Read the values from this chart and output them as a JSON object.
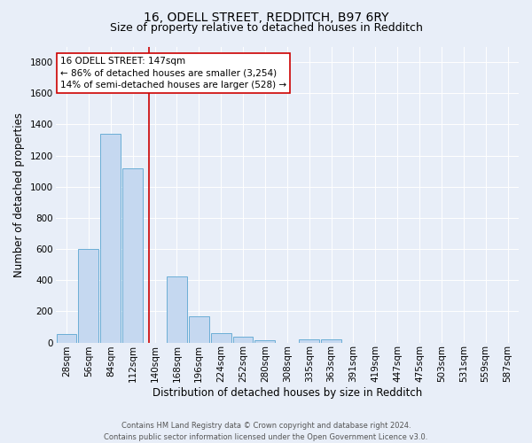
{
  "title_line1": "16, ODELL STREET, REDDITCH, B97 6RY",
  "title_line2": "Size of property relative to detached houses in Redditch",
  "xlabel": "Distribution of detached houses by size in Redditch",
  "ylabel": "Number of detached properties",
  "footer_line1": "Contains HM Land Registry data © Crown copyright and database right 2024.",
  "footer_line2": "Contains public sector information licensed under the Open Government Licence v3.0.",
  "bin_labels": [
    "28sqm",
    "56sqm",
    "84sqm",
    "112sqm",
    "140sqm",
    "168sqm",
    "196sqm",
    "224sqm",
    "252sqm",
    "280sqm",
    "308sqm",
    "335sqm",
    "363sqm",
    "391sqm",
    "419sqm",
    "447sqm",
    "475sqm",
    "503sqm",
    "531sqm",
    "559sqm",
    "587sqm"
  ],
  "bar_values": [
    55,
    600,
    1340,
    1120,
    0,
    425,
    170,
    60,
    40,
    15,
    0,
    20,
    20,
    0,
    0,
    0,
    0,
    0,
    0,
    0,
    0
  ],
  "bar_color": "#c5d8f0",
  "bar_edge_color": "#6baed6",
  "vline_color": "#cc0000",
  "annotation_text_line1": "16 ODELL STREET: 147sqm",
  "annotation_text_line2": "← 86% of detached houses are smaller (3,254)",
  "annotation_text_line3": "14% of semi-detached houses are larger (528) →",
  "ylim": [
    0,
    1900
  ],
  "yticks": [
    0,
    200,
    400,
    600,
    800,
    1000,
    1200,
    1400,
    1600,
    1800
  ],
  "bg_color": "#e8eef8",
  "plot_bg_color": "#e8eef8",
  "grid_color": "#ffffff",
  "title_fontsize": 10,
  "subtitle_fontsize": 9,
  "axis_label_fontsize": 8.5,
  "tick_fontsize": 7.5,
  "annotation_fontsize": 7.5,
  "footer_fontsize": 6
}
